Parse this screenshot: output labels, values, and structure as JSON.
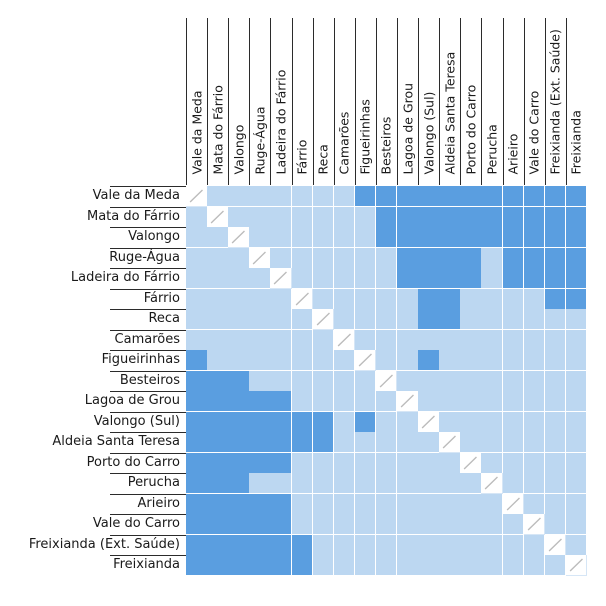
{
  "stops": [
    "Vale da Meda",
    "Mata do Fárrio",
    "Valongo",
    "Ruge-Água",
    "Ladeira do Fárrio",
    "Fárrio",
    "Reca",
    "Camarões",
    "Figueirinhas",
    "Besteiros",
    "Lagoa de Grou",
    "Valongo (Sul)",
    "Aldeia Santa Teresa",
    "Porto do Carro",
    "Perucha",
    "Arieiro",
    "Vale do Carro",
    "Freixianda (Ext. Saúde)",
    "Freixianda"
  ],
  "colors": {
    "light": "#bcd7f1",
    "dark": "#5a9ee0",
    "diagonal_line": "#bbbbbb"
  },
  "dark_cells": [
    [
      0,
      8
    ],
    [
      0,
      9
    ],
    [
      0,
      10
    ],
    [
      0,
      11
    ],
    [
      0,
      12
    ],
    [
      0,
      13
    ],
    [
      0,
      14
    ],
    [
      0,
      15
    ],
    [
      0,
      16
    ],
    [
      0,
      17
    ],
    [
      0,
      18
    ],
    [
      1,
      9
    ],
    [
      1,
      10
    ],
    [
      1,
      11
    ],
    [
      1,
      12
    ],
    [
      1,
      13
    ],
    [
      1,
      14
    ],
    [
      1,
      15
    ],
    [
      1,
      16
    ],
    [
      1,
      17
    ],
    [
      1,
      18
    ],
    [
      2,
      9
    ],
    [
      2,
      10
    ],
    [
      2,
      11
    ],
    [
      2,
      12
    ],
    [
      2,
      13
    ],
    [
      2,
      14
    ],
    [
      2,
      15
    ],
    [
      2,
      16
    ],
    [
      2,
      17
    ],
    [
      2,
      18
    ],
    [
      3,
      10
    ],
    [
      3,
      11
    ],
    [
      3,
      12
    ],
    [
      3,
      13
    ],
    [
      3,
      15
    ],
    [
      3,
      16
    ],
    [
      3,
      17
    ],
    [
      3,
      18
    ],
    [
      4,
      10
    ],
    [
      4,
      11
    ],
    [
      4,
      12
    ],
    [
      4,
      13
    ],
    [
      4,
      15
    ],
    [
      4,
      16
    ],
    [
      4,
      17
    ],
    [
      4,
      18
    ],
    [
      5,
      11
    ],
    [
      5,
      12
    ],
    [
      5,
      17
    ],
    [
      5,
      18
    ],
    [
      6,
      11
    ],
    [
      6,
      12
    ],
    [
      8,
      0
    ],
    [
      8,
      11
    ],
    [
      9,
      0
    ],
    [
      9,
      1
    ],
    [
      9,
      2
    ],
    [
      10,
      0
    ],
    [
      10,
      1
    ],
    [
      10,
      2
    ],
    [
      10,
      3
    ],
    [
      10,
      4
    ],
    [
      11,
      0
    ],
    [
      11,
      1
    ],
    [
      11,
      2
    ],
    [
      11,
      3
    ],
    [
      11,
      4
    ],
    [
      11,
      5
    ],
    [
      11,
      6
    ],
    [
      11,
      8
    ],
    [
      12,
      0
    ],
    [
      12,
      1
    ],
    [
      12,
      2
    ],
    [
      12,
      3
    ],
    [
      12,
      4
    ],
    [
      12,
      5
    ],
    [
      12,
      6
    ],
    [
      13,
      0
    ],
    [
      13,
      1
    ],
    [
      13,
      2
    ],
    [
      13,
      3
    ],
    [
      13,
      4
    ],
    [
      14,
      0
    ],
    [
      14,
      1
    ],
    [
      14,
      2
    ],
    [
      15,
      0
    ],
    [
      15,
      1
    ],
    [
      15,
      2
    ],
    [
      15,
      3
    ],
    [
      15,
      4
    ],
    [
      16,
      0
    ],
    [
      16,
      1
    ],
    [
      16,
      2
    ],
    [
      16,
      3
    ],
    [
      16,
      4
    ],
    [
      17,
      0
    ],
    [
      17,
      1
    ],
    [
      17,
      2
    ],
    [
      17,
      3
    ],
    [
      17,
      4
    ],
    [
      17,
      5
    ],
    [
      18,
      0
    ],
    [
      18,
      1
    ],
    [
      18,
      2
    ],
    [
      18,
      3
    ],
    [
      18,
      4
    ],
    [
      18,
      5
    ]
  ]
}
